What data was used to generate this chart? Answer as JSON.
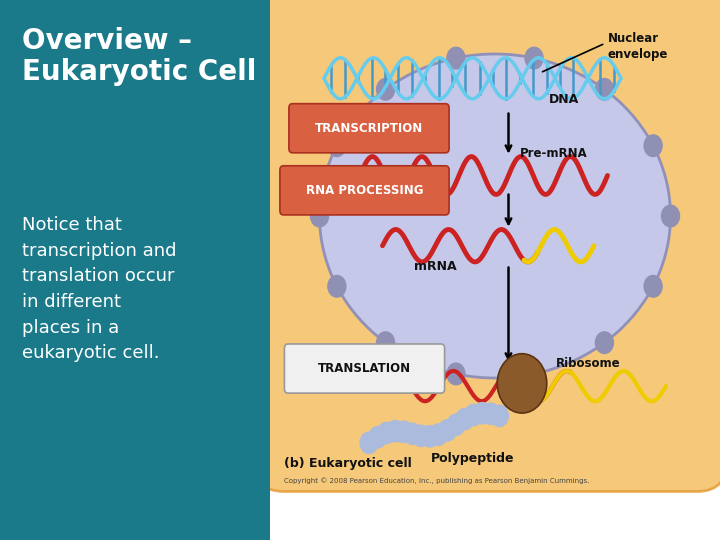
{
  "bg_color": "#1a7a8a",
  "right_bg": "#ffffff",
  "title": "Overview –\nEukaryotic Cell",
  "title_color": "#ffffff",
  "title_fontsize": 20,
  "body_text": "Notice that\ntranscription and\ntranslation occur\nin different\nplaces in a\neukaryotic cell.",
  "body_color": "#ffffff",
  "body_fontsize": 13,
  "cell_bg": "#f5c87a",
  "cell_edge": "#e8a84a",
  "nucleus_bg": "#c5c8e8",
  "nucleus_border": "#9090b8",
  "transcription_box_color": "#d96040",
  "rna_processing_box_color": "#d96040",
  "translation_box_color": "#f0f0f0",
  "translation_box_edge": "#999999",
  "dna_color1": "#66ccee",
  "dna_color2": "#4499cc",
  "premrna_color": "#cc2222",
  "mrna_red": "#cc2222",
  "mrna_yellow": "#eecc00",
  "ribosome_color": "#8B5A2B",
  "poly_color": "#aabbdd",
  "poly_edge": "#7788aa",
  "nuclear_dot_color": "#9090b5",
  "label_color": "#111111",
  "caption": "(b) Eukaryotic cell",
  "copyright": "Copyright © 2008 Pearson Education, Inc., publishing as Pearson Benjamin Cummings."
}
